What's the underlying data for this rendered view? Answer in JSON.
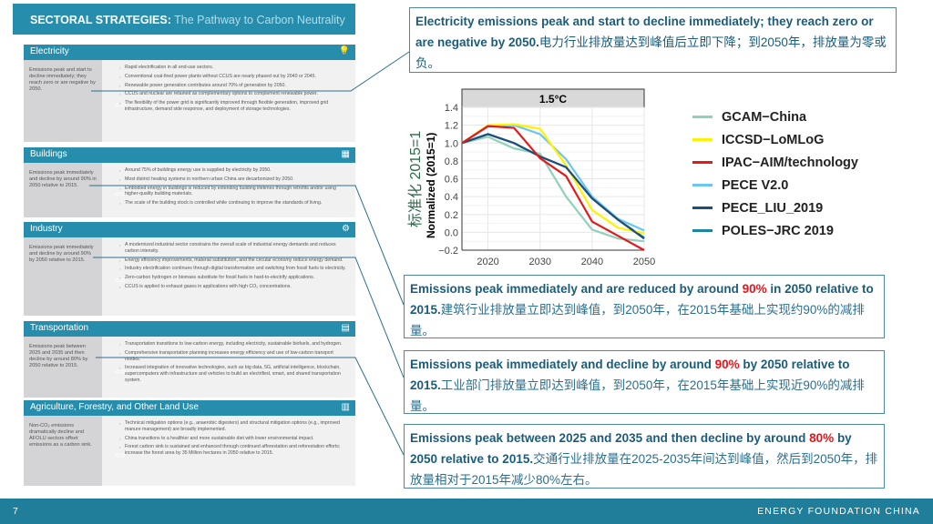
{
  "header": {
    "title_bold": "SECTORAL STRATEGIES:",
    "title_sub": " The Pathway to Carbon Neutrality"
  },
  "sectors": [
    {
      "name": "Electricity",
      "icon": "lightbulb-icon",
      "summary": "Emissions peak and start to decline immediately; they reach zero or are negative by 2050.",
      "bullets": [
        "Rapid electrification in all end-use sectors.",
        "Conventional coal-fired power plants without CCUS are nearly phased out by 2040 or 2045.",
        "Renewable power generation contributes around 70% of generation by 2050.",
        "CCUS and nuclear are retained as complementary options to complement renewable power.",
        "The flexibility of the power grid is significantly improved through flexible generation, improved grid infrastructure, demand side response, and deployment of storage technologies."
      ]
    },
    {
      "name": "Buildings",
      "icon": "building-icon",
      "summary": "Emissions peak immediately and decline by around 90% in 2050 relative to 2015.",
      "bullets": [
        "Around 75% of buildings energy use is supplied by electricity by 2050.",
        "Most district heating systems in northern urban China are decarbonized by 2050.",
        "Embodied energy in buildings is reduced by extending building lifetimes through retrofits and/or using higher-quality building materials.",
        "The scale of the building stock is controlled while continuing to improve the standards of living."
      ]
    },
    {
      "name": "Industry",
      "icon": "factory-icon",
      "summary": "Emissions peak immediately and decline by around 90% by 2050 relative to 2015.",
      "bullets": [
        "A modernized industrial sector constrains the overall scale of industrial energy demands and reduces carbon intensity.",
        "Energy efficiency improvements, material substitution, and the circular economy reduce energy demand.",
        "Industry electrification continues through digital transformation and switching from fossil fuels to electricity.",
        "Zero-carbon hydrogen or biomass substitute for fossil fuels in hard-to-electrify applications.",
        "CCUS is applied to exhaust gases in applications with high CO₂ concentrations."
      ]
    },
    {
      "name": "Transportation",
      "icon": "vehicle-icon",
      "summary": "Emissions peak between 2025 and 2035 and then decline by around 80% by 2050 relative to 2015.",
      "bullets": [
        "Transportation transitions to low-carbon energy, including electricity, sustainable biofuels, and hydrogen.",
        "Comprehensive transportation planning increases energy efficiency and use of low-carbon transport modes.",
        "Increased integration of innovative technologies, such as big data, 5G, artificial intelligence, blockchain, supercomputers with infrastructure and vehicles to build an electrified, smart, and shared transportation system."
      ]
    },
    {
      "name": "Agriculture, Forestry, and Other Land Use",
      "icon": "forest-icon",
      "summary": "Non-CO₂ emissions dramatically decline and AFOLU sectors offset emissions as a carbon sink.",
      "bullets": [
        "Technical mitigation options (e.g., anaerobic digesters) and structural mitigation options (e.g., improved manure management) are broadly implemented.",
        "China transitions to a healthier and more sustainable diet with lower environmental impact.",
        "Forest carbon sink is sustained and enhanced through continued afforestation and reforestation efforts; increase the forest area by 35 Million hectares in 2050 relative to 2015."
      ]
    }
  ],
  "callouts": [
    {
      "en": "Electricity emissions peak and start to decline immediately; they reach zero or are negative by 2050.",
      "pct": "",
      "en2": "",
      "cn": "电力行业排放量达到峰值后立即下降；到2050年，排放量为零或负。"
    },
    {
      "en": "Emissions peak immediately and are reduced by around ",
      "pct": "90%",
      "en2": " in 2050 relative to 2015.",
      "cn": "建筑行业排放量立即达到峰值，到2050年，在2015年基础上实现约90%的减排量。"
    },
    {
      "en": "Emissions peak immediately and decline by around ",
      "pct": "90%",
      "en2": " by 2050 relative to 2015.",
      "cn": "工业部门排放量立即达到峰值，到2050年，在2015年基础上实现近90%的减排量。"
    },
    {
      "en": "Emissions peak between 2025 and 2035 and then decline by around ",
      "pct": "80%",
      "en2": " by 2050 relative to 2015.",
      "cn": "交通行业排放量在2025-2035年间达到峰值，然后到2050年，排放量相对于2015年减少80%左右。"
    }
  ],
  "chart_data": {
    "type": "line",
    "title": "1.5°C",
    "ylabel": "Normalized (2015=1)",
    "ylabel_cn": "标准化 2015=1",
    "xlim": [
      2015,
      2050
    ],
    "ylim": [
      -0.2,
      1.4
    ],
    "grid": true,
    "legend_position": "right",
    "xticks": [
      2020,
      2030,
      2040,
      2050
    ],
    "yticks": [
      -0.2,
      0.0,
      0.2,
      0.4,
      0.6,
      0.8,
      1.0,
      1.2,
      1.4
    ],
    "ytick_labels": [
      "−0.2",
      "0.0",
      "0.2",
      "0.4",
      "0.6",
      "0.8",
      "1.0",
      "1.2",
      "1.4"
    ],
    "x": [
      2015,
      2020,
      2025,
      2030,
      2035,
      2040,
      2045,
      2050
    ],
    "series": [
      {
        "name": "GCAM−China",
        "color": "#8fd1bb",
        "values": [
          1,
          1.07,
          0.94,
          0.88,
          0.4,
          0.03,
          -0.07,
          -0.1
        ]
      },
      {
        "name": "ICCSD−LoMLoG",
        "color": "#fff200",
        "values": [
          1,
          1.2,
          1.21,
          1.16,
          0.75,
          0.25,
          0.05,
          -0.01
        ]
      },
      {
        "name": "IPAC−AIM/technology",
        "color": "#e31a1c",
        "values": [
          1,
          1.19,
          1.17,
          0.83,
          0.63,
          0.12,
          -0.04,
          -0.2
        ]
      },
      {
        "name": "PECE V2.0",
        "color": "#6ac6f0",
        "values": [
          1,
          1.18,
          1.2,
          1.1,
          0.82,
          0.4,
          0.15,
          0.02
        ]
      },
      {
        "name": "PECE_LIU_2019",
        "color": "#1f4e79",
        "values": [
          1,
          1.1,
          1.0,
          0.85,
          0.73,
          0.38,
          0.14,
          -0.07
        ]
      },
      {
        "name": "POLES−JRC 2019",
        "color": "#1a86a3",
        "values": [
          1,
          1.1,
          1.0,
          0.85,
          0.73,
          0.38,
          0.14,
          -0.06
        ]
      }
    ]
  },
  "footer": {
    "page": "7",
    "org": "ENERGY FOUNDATION CHINA"
  }
}
